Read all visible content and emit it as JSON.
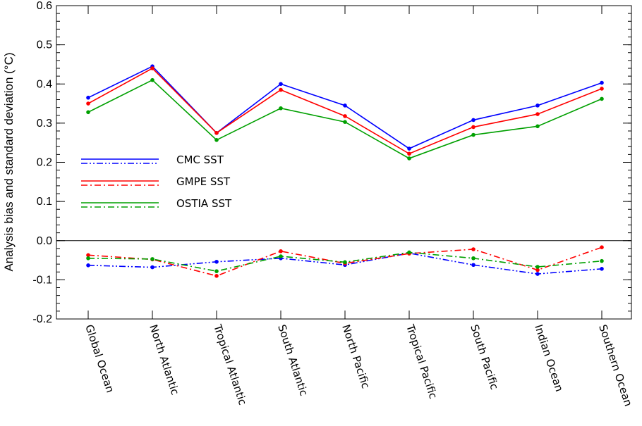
{
  "chart_data": {
    "type": "line",
    "title": "",
    "xlabel": "",
    "ylabel": "Analysis bias and standard deviation (°C)",
    "ylim": [
      -0.2,
      0.6
    ],
    "yticks": [
      "-0.2",
      "-0.1",
      "0.0",
      "0.1",
      "0.2",
      "0.3",
      "0.4",
      "0.5",
      "0.6"
    ],
    "ytick_values": [
      -0.2,
      -0.1,
      0.0,
      0.1,
      0.2,
      0.3,
      0.4,
      0.5,
      0.6
    ],
    "zero_line": true,
    "grid": false,
    "legend_position": "middle-left",
    "categories": [
      "Global Ocean",
      "North Atlantic",
      "Tropical Atlantic",
      "South Atlantic",
      "North Pacific",
      "Tropical Pacific",
      "South Pacific",
      "Indian Ocean",
      "Southern Ocean"
    ],
    "series": [
      {
        "name": "CMC SST",
        "color": "#0000ff",
        "kind": "std",
        "style": "solid",
        "values": [
          0.365,
          0.445,
          0.275,
          0.4,
          0.345,
          0.235,
          0.308,
          0.345,
          0.403
        ]
      },
      {
        "name": "GMPE SST",
        "color": "#ff0000",
        "kind": "std",
        "style": "solid",
        "values": [
          0.35,
          0.44,
          0.275,
          0.385,
          0.318,
          0.222,
          0.29,
          0.323,
          0.388
        ]
      },
      {
        "name": "OSTIA SST",
        "color": "#00a000",
        "kind": "std",
        "style": "solid",
        "values": [
          0.328,
          0.41,
          0.257,
          0.338,
          0.303,
          0.21,
          0.27,
          0.292,
          0.362
        ]
      },
      {
        "name": "CMC SST",
        "color": "#0000ff",
        "kind": "bias",
        "style": "dash-dot-dot",
        "values": [
          -0.063,
          -0.068,
          -0.054,
          -0.045,
          -0.062,
          -0.032,
          -0.062,
          -0.085,
          -0.072
        ]
      },
      {
        "name": "GMPE SST",
        "color": "#ff0000",
        "kind": "bias",
        "style": "dash-dot",
        "values": [
          -0.037,
          -0.048,
          -0.09,
          -0.027,
          -0.058,
          -0.033,
          -0.022,
          -0.075,
          -0.017
        ]
      },
      {
        "name": "OSTIA SST",
        "color": "#00a000",
        "kind": "bias",
        "style": "dash-dot",
        "values": [
          -0.045,
          -0.047,
          -0.078,
          -0.04,
          -0.055,
          -0.03,
          -0.045,
          -0.067,
          -0.052
        ]
      }
    ],
    "legend": [
      {
        "label": "CMC SST",
        "color": "#0000ff"
      },
      {
        "label": "GMPE SST",
        "color": "#ff0000"
      },
      {
        "label": "OSTIA SST",
        "color": "#00a000"
      }
    ]
  }
}
